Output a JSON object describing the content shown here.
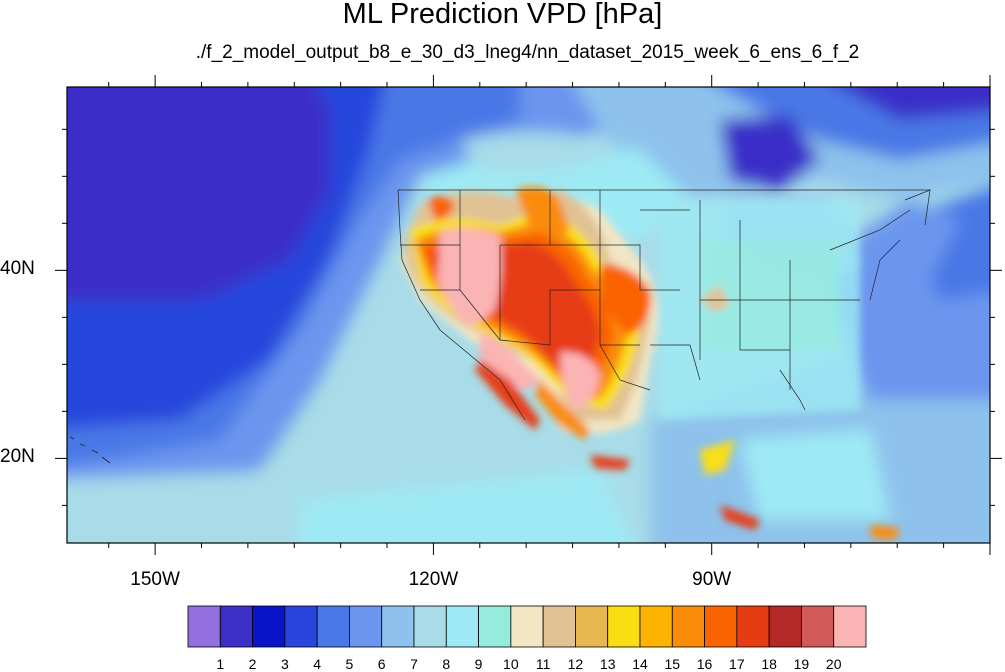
{
  "title": "ML Prediction VPD [hPa]",
  "subtitle": "./f_2_model_output_b8_e_30_d3_lneg4/nn_dataset_2015_week_6_ens_6_f_2",
  "axes": {
    "x_ticks": [
      {
        "value": -150,
        "label": "150W"
      },
      {
        "value": -120,
        "label": "120W"
      },
      {
        "value": -90,
        "label": "90W"
      }
    ],
    "y_ticks": [
      {
        "value": 40,
        "label": "40N"
      },
      {
        "value": 20,
        "label": "20N"
      }
    ],
    "lon_range": [
      -159.5,
      -60
    ],
    "lat_range": [
      11,
      59.5
    ]
  },
  "colorbar": {
    "labels": [
      "1",
      "2",
      "3",
      "4",
      "5",
      "6",
      "7",
      "8",
      "9",
      "10",
      "11",
      "12",
      "13",
      "14",
      "15",
      "16",
      "17",
      "18",
      "19",
      "20"
    ],
    "colors": [
      "#9370db",
      "#3b2fc8",
      "#0a14c8",
      "#2846dc",
      "#4a78e6",
      "#6c96ee",
      "#8ec2ec",
      "#a8dce8",
      "#9eeaf4",
      "#96ecdc",
      "#f2e6c4",
      "#e0c294",
      "#e8b850",
      "#fade14",
      "#fcb400",
      "#fa8c08",
      "#fa6400",
      "#e63c14",
      "#b42828",
      "#d25a5a",
      "#fab4b4"
    ]
  }
}
